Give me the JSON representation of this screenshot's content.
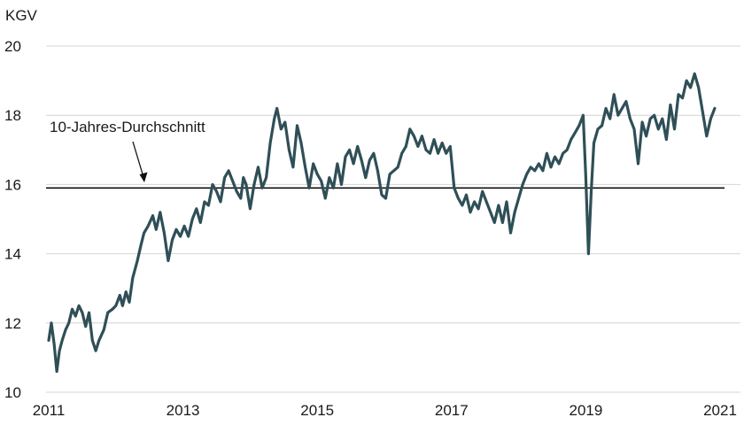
{
  "chart_data": {
    "type": "line",
    "ylabel": "KGV",
    "ylim": [
      10,
      20
    ],
    "xlim": [
      2011,
      2021
    ],
    "yticks": [
      10,
      12,
      14,
      16,
      18,
      20
    ],
    "xticks": [
      "2011",
      "2013",
      "2015",
      "2017",
      "2019",
      "2021"
    ],
    "grid": "horizontal",
    "reference_line": {
      "value": 15.9,
      "label": "10-Jahres-Durchschnitt"
    },
    "colors": {
      "series": "#2f4f57",
      "reference": "#111111",
      "grid": "#d4d4d4"
    },
    "series": [
      {
        "points": [
          [
            2011.0,
            11.5
          ],
          [
            2011.04,
            12.0
          ],
          [
            2011.08,
            11.4
          ],
          [
            2011.12,
            10.6
          ],
          [
            2011.16,
            11.2
          ],
          [
            2011.2,
            11.5
          ],
          [
            2011.25,
            11.8
          ],
          [
            2011.3,
            12.0
          ],
          [
            2011.35,
            12.4
          ],
          [
            2011.4,
            12.2
          ],
          [
            2011.45,
            12.5
          ],
          [
            2011.5,
            12.3
          ],
          [
            2011.55,
            11.9
          ],
          [
            2011.6,
            12.3
          ],
          [
            2011.65,
            11.5
          ],
          [
            2011.7,
            11.2
          ],
          [
            2011.75,
            11.5
          ],
          [
            2011.82,
            11.8
          ],
          [
            2011.88,
            12.3
          ],
          [
            2011.95,
            12.4
          ],
          [
            2012.0,
            12.5
          ],
          [
            2012.06,
            12.8
          ],
          [
            2012.1,
            12.5
          ],
          [
            2012.15,
            12.9
          ],
          [
            2012.2,
            12.6
          ],
          [
            2012.25,
            13.3
          ],
          [
            2012.32,
            13.8
          ],
          [
            2012.38,
            14.3
          ],
          [
            2012.42,
            14.6
          ],
          [
            2012.48,
            14.8
          ],
          [
            2012.55,
            15.1
          ],
          [
            2012.6,
            14.7
          ],
          [
            2012.66,
            15.2
          ],
          [
            2012.72,
            14.6
          ],
          [
            2012.78,
            13.8
          ],
          [
            2012.84,
            14.4
          ],
          [
            2012.9,
            14.7
          ],
          [
            2012.96,
            14.5
          ],
          [
            2013.02,
            14.8
          ],
          [
            2013.08,
            14.5
          ],
          [
            2013.14,
            15.0
          ],
          [
            2013.2,
            15.3
          ],
          [
            2013.26,
            14.9
          ],
          [
            2013.32,
            15.5
          ],
          [
            2013.38,
            15.4
          ],
          [
            2013.44,
            16.0
          ],
          [
            2013.5,
            15.8
          ],
          [
            2013.56,
            15.5
          ],
          [
            2013.62,
            16.2
          ],
          [
            2013.68,
            16.4
          ],
          [
            2013.74,
            16.1
          ],
          [
            2013.8,
            15.8
          ],
          [
            2013.86,
            15.6
          ],
          [
            2013.9,
            16.2
          ],
          [
            2013.94,
            16.0
          ],
          [
            2014.0,
            15.3
          ],
          [
            2014.06,
            16.0
          ],
          [
            2014.12,
            16.5
          ],
          [
            2014.18,
            15.9
          ],
          [
            2014.24,
            16.2
          ],
          [
            2014.3,
            17.2
          ],
          [
            2014.36,
            17.9
          ],
          [
            2014.4,
            18.2
          ],
          [
            2014.46,
            17.6
          ],
          [
            2014.52,
            17.8
          ],
          [
            2014.58,
            17.0
          ],
          [
            2014.64,
            16.5
          ],
          [
            2014.7,
            17.7
          ],
          [
            2014.76,
            17.2
          ],
          [
            2014.82,
            16.5
          ],
          [
            2014.88,
            15.9
          ],
          [
            2014.94,
            16.6
          ],
          [
            2015.0,
            16.3
          ],
          [
            2015.06,
            16.1
          ],
          [
            2015.12,
            15.6
          ],
          [
            2015.18,
            16.2
          ],
          [
            2015.24,
            15.9
          ],
          [
            2015.3,
            16.6
          ],
          [
            2015.36,
            16.0
          ],
          [
            2015.42,
            16.8
          ],
          [
            2015.48,
            17.0
          ],
          [
            2015.54,
            16.6
          ],
          [
            2015.6,
            17.1
          ],
          [
            2015.66,
            16.7
          ],
          [
            2015.72,
            16.2
          ],
          [
            2015.78,
            16.7
          ],
          [
            2015.84,
            16.9
          ],
          [
            2015.9,
            16.4
          ],
          [
            2015.96,
            15.7
          ],
          [
            2016.02,
            15.6
          ],
          [
            2016.08,
            16.3
          ],
          [
            2016.14,
            16.4
          ],
          [
            2016.2,
            16.5
          ],
          [
            2016.26,
            16.9
          ],
          [
            2016.32,
            17.1
          ],
          [
            2016.38,
            17.6
          ],
          [
            2016.44,
            17.4
          ],
          [
            2016.5,
            17.1
          ],
          [
            2016.56,
            17.4
          ],
          [
            2016.62,
            17.0
          ],
          [
            2016.68,
            16.9
          ],
          [
            2016.74,
            17.3
          ],
          [
            2016.8,
            16.9
          ],
          [
            2016.86,
            17.2
          ],
          [
            2016.92,
            16.9
          ],
          [
            2016.98,
            17.1
          ],
          [
            2017.04,
            15.9
          ],
          [
            2017.1,
            15.6
          ],
          [
            2017.16,
            15.4
          ],
          [
            2017.22,
            15.7
          ],
          [
            2017.28,
            15.2
          ],
          [
            2017.34,
            15.5
          ],
          [
            2017.4,
            15.3
          ],
          [
            2017.46,
            15.8
          ],
          [
            2017.52,
            15.5
          ],
          [
            2017.58,
            15.2
          ],
          [
            2017.64,
            14.9
          ],
          [
            2017.7,
            15.4
          ],
          [
            2017.76,
            14.9
          ],
          [
            2017.82,
            15.5
          ],
          [
            2017.88,
            14.6
          ],
          [
            2017.94,
            15.2
          ],
          [
            2018.0,
            15.6
          ],
          [
            2018.06,
            16.0
          ],
          [
            2018.12,
            16.3
          ],
          [
            2018.18,
            16.5
          ],
          [
            2018.24,
            16.4
          ],
          [
            2018.3,
            16.6
          ],
          [
            2018.36,
            16.4
          ],
          [
            2018.42,
            16.9
          ],
          [
            2018.48,
            16.5
          ],
          [
            2018.54,
            16.8
          ],
          [
            2018.6,
            16.6
          ],
          [
            2018.66,
            16.9
          ],
          [
            2018.72,
            17.0
          ],
          [
            2018.78,
            17.3
          ],
          [
            2018.84,
            17.5
          ],
          [
            2018.9,
            17.7
          ],
          [
            2018.96,
            18.0
          ],
          [
            2019.0,
            16.2
          ],
          [
            2019.04,
            14.0
          ],
          [
            2019.08,
            15.8
          ],
          [
            2019.12,
            17.2
          ],
          [
            2019.18,
            17.6
          ],
          [
            2019.24,
            17.7
          ],
          [
            2019.3,
            18.2
          ],
          [
            2019.36,
            17.9
          ],
          [
            2019.42,
            18.6
          ],
          [
            2019.48,
            18.0
          ],
          [
            2019.54,
            18.2
          ],
          [
            2019.6,
            18.4
          ],
          [
            2019.66,
            17.9
          ],
          [
            2019.72,
            17.6
          ],
          [
            2019.78,
            16.6
          ],
          [
            2019.84,
            17.8
          ],
          [
            2019.9,
            17.4
          ],
          [
            2019.96,
            17.9
          ],
          [
            2020.02,
            18.0
          ],
          [
            2020.08,
            17.6
          ],
          [
            2020.14,
            17.9
          ],
          [
            2020.2,
            17.3
          ],
          [
            2020.26,
            18.3
          ],
          [
            2020.32,
            17.6
          ],
          [
            2020.38,
            18.6
          ],
          [
            2020.44,
            18.5
          ],
          [
            2020.5,
            19.0
          ],
          [
            2020.56,
            18.8
          ],
          [
            2020.62,
            19.2
          ],
          [
            2020.68,
            18.8
          ],
          [
            2020.74,
            18.1
          ],
          [
            2020.8,
            17.4
          ],
          [
            2020.86,
            17.9
          ],
          [
            2020.92,
            18.2
          ]
        ]
      }
    ]
  }
}
